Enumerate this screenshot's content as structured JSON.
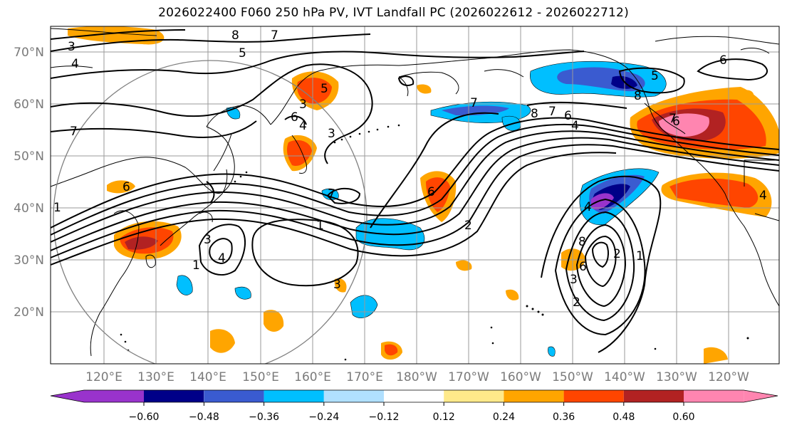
{
  "title": "2026022400 F060 250 hPa PV, IVT Landfall PC (2026022612 - 2026022712)",
  "lat_labels": [
    "70°N",
    "60°N",
    "50°N",
    "40°N",
    "30°N",
    "20°N"
  ],
  "lon_labels": [
    "120°E",
    "130°E",
    "140°E",
    "150°E",
    "160°E",
    "170°E",
    "180°W",
    "170°W",
    "160°W",
    "150°W",
    "140°W",
    "130°W",
    "120°W"
  ],
  "colorbar": {
    "colors": [
      "#9933cc",
      "#000088",
      "#3a5bd0",
      "#00bfff",
      "#b0e0ff",
      "#ffffff",
      "#ffe98a",
      "#ffa500",
      "#ff4500",
      "#b22222",
      "#ff85b0"
    ],
    "tick_labels": [
      "−0.60",
      "−0.48",
      "−0.36",
      "−0.24",
      "−0.12",
      "0.12",
      "0.24",
      "0.36",
      "0.48",
      "0.60"
    ]
  },
  "contour_labels": [
    "3",
    "8",
    "7",
    "4",
    "5",
    "6",
    "7",
    "8",
    "8",
    "7",
    "6",
    "4",
    "7",
    "3",
    "4",
    "5",
    "6",
    "6",
    "6",
    "3",
    "4",
    "7",
    "1",
    "3",
    "4",
    "1",
    "2",
    "4",
    "8",
    "6",
    "3",
    "2",
    "1",
    "1",
    "2",
    "3",
    "6",
    "7",
    "5"
  ],
  "colors": {
    "neg_strong": "#000088",
    "pos_strong": "#ff85b0",
    "coast": "#000000",
    "grid": "#9a9a9a",
    "circle": "#808080"
  }
}
